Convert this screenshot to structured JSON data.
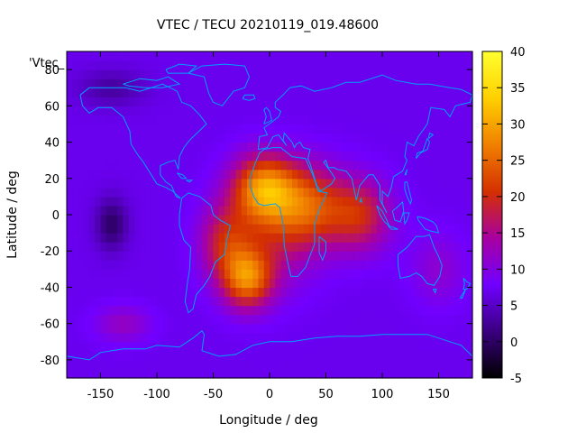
{
  "chart_data": {
    "type": "heatmap",
    "title": "VTEC / TECU 20210119_019.48600",
    "xlabel": "Longitude / deg",
    "ylabel": "Latitude / deg",
    "xlim": [
      -180,
      180
    ],
    "ylim": [
      -90,
      90
    ],
    "xticks": [
      -150,
      -100,
      -50,
      0,
      50,
      100,
      150
    ],
    "yticks": [
      -80,
      -60,
      -40,
      -20,
      0,
      20,
      40,
      60,
      80
    ],
    "colorbar": {
      "min": -5,
      "max": 40,
      "ticks": [
        -5,
        0,
        5,
        10,
        15,
        20,
        25,
        30,
        35,
        40
      ]
    },
    "key_label": "'Vtec_",
    "grid": false,
    "colors": {
      "cmap": [
        "#000000",
        "#3a0080",
        "#7000ff",
        "#a800a0",
        "#d43000",
        "#f08000",
        "#ffd000",
        "#ffff30"
      ],
      "coastline": "#00a0ff",
      "background": "#7020ff"
    },
    "field": {
      "base_value": 7,
      "blobs": [
        {
          "lon": -5,
          "lat": 15,
          "amp": 19,
          "sx": 28,
          "sy": 18
        },
        {
          "lon": 35,
          "lat": 5,
          "amp": 14,
          "sx": 32,
          "sy": 22
        },
        {
          "lon": 80,
          "lat": 0,
          "amp": 12,
          "sx": 28,
          "sy": 20
        },
        {
          "lon": -20,
          "lat": -35,
          "amp": 18,
          "sx": 22,
          "sy": 16
        },
        {
          "lon": -40,
          "lat": -15,
          "amp": 10,
          "sx": 22,
          "sy": 20
        },
        {
          "lon": 0,
          "lat": -10,
          "amp": 8,
          "sx": 40,
          "sy": 30
        },
        {
          "lon": -140,
          "lat": -5,
          "amp": -7,
          "sx": 14,
          "sy": 14
        },
        {
          "lon": -140,
          "lat": 70,
          "amp": -4,
          "sx": 30,
          "sy": 10
        },
        {
          "lon": -130,
          "lat": -60,
          "amp": 5,
          "sx": 25,
          "sy": 10
        },
        {
          "lon": 150,
          "lat": -30,
          "amp": 4,
          "sx": 25,
          "sy": 20
        }
      ]
    }
  }
}
